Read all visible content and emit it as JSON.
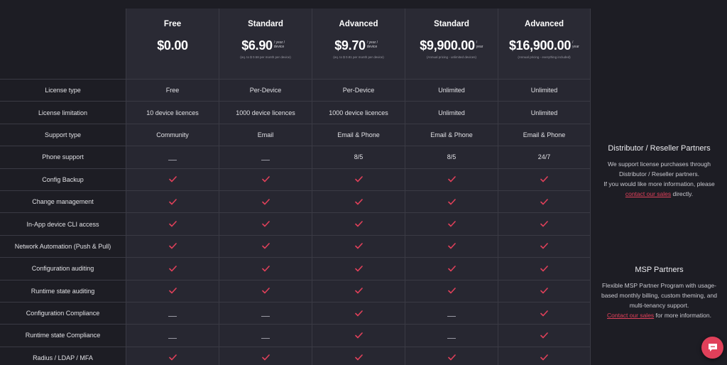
{
  "plans": [
    {
      "name": "Free",
      "price": "$0.00",
      "unit": "",
      "note": ""
    },
    {
      "name": "Standard",
      "price": "$6.90",
      "unit": "/ year / device",
      "note": "(eq. to $ 0.58 per month per device)"
    },
    {
      "name": "Advanced",
      "price": "$9.70",
      "unit": "/ year / device",
      "note": "(eq. to $ 0.81 per month per device)"
    },
    {
      "name": "Standard",
      "price": "$9,900.00",
      "unit": "/ year",
      "note": "(Annual pricing - unlimited devices)"
    },
    {
      "name": "Advanced",
      "price": "$16,900.00",
      "unit": "/ year",
      "note": "(Annual pricing - everything included)"
    }
  ],
  "rows": [
    {
      "label": "License type",
      "cells": [
        "Free",
        "Per-Device",
        "Per-Device",
        "Unlimited",
        "Unlimited"
      ]
    },
    {
      "label": "License limitation",
      "cells": [
        "10 device licences",
        "1000 device licences",
        "1000 device licences",
        "Unlimited",
        "Unlimited"
      ]
    },
    {
      "label": "Support type",
      "cells": [
        "Community",
        "Email",
        "Email & Phone",
        "Email & Phone",
        "Email & Phone"
      ]
    },
    {
      "label": "Phone support",
      "cells": [
        "-",
        "-",
        "8/5",
        "8/5",
        "24/7"
      ]
    },
    {
      "label": "Config Backup",
      "cells": [
        "check",
        "check",
        "check",
        "check",
        "check"
      ]
    },
    {
      "label": "Change management",
      "cells": [
        "check",
        "check",
        "check",
        "check",
        "check"
      ]
    },
    {
      "label": "In-App device CLI access",
      "cells": [
        "check",
        "check",
        "check",
        "check",
        "check"
      ]
    },
    {
      "label": "Network Automation (Push & Pull)",
      "cells": [
        "check",
        "check",
        "check",
        "check",
        "check"
      ]
    },
    {
      "label": "Configuration auditing",
      "cells": [
        "check",
        "check",
        "check",
        "check",
        "check"
      ]
    },
    {
      "label": "Runtime state auditing",
      "cells": [
        "check",
        "check",
        "check",
        "check",
        "check"
      ]
    },
    {
      "label": "Configuration Compliance",
      "cells": [
        "-",
        "-",
        "check",
        "-",
        "check"
      ]
    },
    {
      "label": "Runtime state Compliance",
      "cells": [
        "-",
        "-",
        "check",
        "-",
        "check"
      ]
    },
    {
      "label": "Radius / LDAP / MFA",
      "cells": [
        "check",
        "check",
        "check",
        "check",
        "check"
      ]
    }
  ],
  "distributor": {
    "title": "Distributor / Reseller Partners",
    "line1": "We support license purchases through Distributor / Reseller partners.",
    "line2": "If you would like more information, please",
    "link": "contact our sales",
    "after": " directly."
  },
  "msp": {
    "title": "MSP Partners",
    "text": "Flexible MSP Partner Program with usage-based monthly billing, custom theming, and multi-tenancy support.",
    "link": "Contact our sales",
    "after": " for more information."
  },
  "icons": {
    "check": "check-icon",
    "dash": "dash-icon",
    "chat": "chat-icon"
  },
  "colors": {
    "accent": "#e0405a",
    "background": "#1d1d24",
    "panel": "#272731"
  }
}
